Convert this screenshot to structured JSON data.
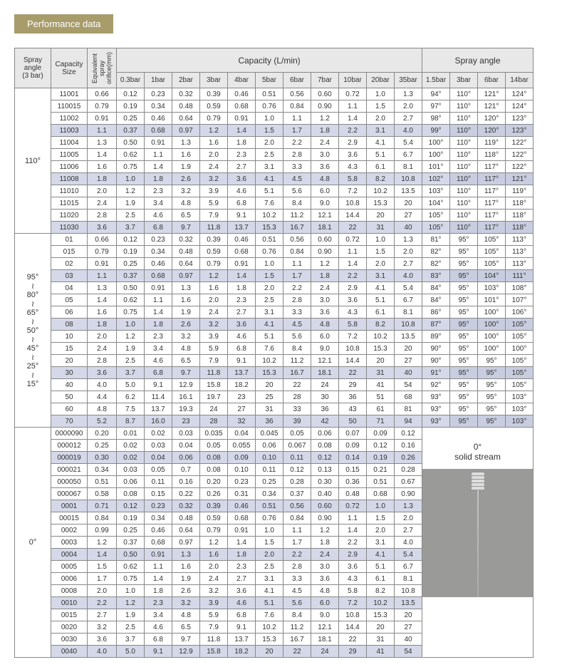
{
  "title": "Performance data",
  "title_bg": "#a89c6a",
  "title_color": "#ffffff",
  "header_bg": "#e8e8e8",
  "shade_bg": "#d4d8e8",
  "shade_angle_bg": "#c8cde0",
  "headers": {
    "spray_angle_label": "Spray\nangle\n(3 bar)",
    "capacity_size": "Capacity\nSize",
    "orifice": "Equivalent\nspray\norifice(mm)",
    "capacity_group": "Capacity (L/min)",
    "spray_angle_group": "Spray angle",
    "cap_cols": [
      "0.3bar",
      "1bar",
      "2bar",
      "3bar",
      "4bar",
      "5bar",
      "6bar",
      "7bar",
      "10bar",
      "20bar",
      "35bar"
    ],
    "angle_cols": [
      "1.5bar",
      "3bar",
      "6bar",
      "14bar"
    ]
  },
  "groups": [
    {
      "label": "110°",
      "rows": [
        {
          "s": "11001",
          "o": "0.66",
          "c": [
            "0.12",
            "0.23",
            "0.32",
            "0.39",
            "0.46",
            "0.51",
            "0.56",
            "0.60",
            "0.72",
            "1.0",
            "1.3"
          ],
          "a": [
            "94°",
            "110°",
            "121°",
            "124°"
          ]
        },
        {
          "s": "110015",
          "o": "0.79",
          "c": [
            "0.19",
            "0.34",
            "0.48",
            "0.59",
            "0.68",
            "0.76",
            "0.84",
            "0.90",
            "1.1",
            "1.5",
            "2.0"
          ],
          "a": [
            "97°",
            "110°",
            "121°",
            "124°"
          ]
        },
        {
          "s": "11002",
          "o": "0.91",
          "c": [
            "0.25",
            "0.46",
            "0.64",
            "0.79",
            "0.91",
            "1.0",
            "1.1",
            "1.2",
            "1.4",
            "2.0",
            "2.7"
          ],
          "a": [
            "98°",
            "110°",
            "120°",
            "123°"
          ]
        },
        {
          "s": "11003",
          "o": "1.1",
          "c": [
            "0.37",
            "0.68",
            "0.97",
            "1.2",
            "1.4",
            "1.5",
            "1.7",
            "1.8",
            "2.2",
            "3.1",
            "4.0"
          ],
          "a": [
            "99°",
            "110°",
            "120°",
            "123°"
          ],
          "shade": true
        },
        {
          "s": "11004",
          "o": "1.3",
          "c": [
            "0.50",
            "0.91",
            "1.3",
            "1.6",
            "1.8",
            "2.0",
            "2.2",
            "2.4",
            "2.9",
            "4.1",
            "5.4"
          ],
          "a": [
            "100°",
            "110°",
            "119°",
            "122°"
          ]
        },
        {
          "s": "11005",
          "o": "1.4",
          "c": [
            "0.62",
            "1.1",
            "1.6",
            "2.0",
            "2.3",
            "2.5",
            "2.8",
            "3.0",
            "3.6",
            "5.1",
            "6.7"
          ],
          "a": [
            "100°",
            "110°",
            "118°",
            "122°"
          ]
        },
        {
          "s": "11006",
          "o": "1.6",
          "c": [
            "0.75",
            "1.4",
            "1.9",
            "2.4",
            "2.7",
            "3.1",
            "3.3",
            "3.6",
            "4.3",
            "6.1",
            "8.1"
          ],
          "a": [
            "101°",
            "110°",
            "117°",
            "122°"
          ]
        },
        {
          "s": "11008",
          "o": "1.8",
          "c": [
            "1.0",
            "1.8",
            "2.6",
            "3.2",
            "3.6",
            "4.1",
            "4.5",
            "4.8",
            "5.8",
            "8.2",
            "10.8"
          ],
          "a": [
            "102°",
            "110°",
            "117°",
            "121°"
          ],
          "shade": true
        },
        {
          "s": "11010",
          "o": "2.0",
          "c": [
            "1.2",
            "2.3",
            "3.2",
            "3.9",
            "4.6",
            "5.1",
            "5.6",
            "6.0",
            "7.2",
            "10.2",
            "13.5"
          ],
          "a": [
            "103°",
            "110°",
            "117°",
            "119°"
          ]
        },
        {
          "s": "11015",
          "o": "2.4",
          "c": [
            "1.9",
            "3.4",
            "4.8",
            "5.9",
            "6.8",
            "7.6",
            "8.4",
            "9.0",
            "10.8",
            "15.3",
            "20"
          ],
          "a": [
            "104°",
            "110°",
            "117°",
            "118°"
          ]
        },
        {
          "s": "11020",
          "o": "2.8",
          "c": [
            "2.5",
            "4.6",
            "6.5",
            "7.9",
            "9.1",
            "10.2",
            "11.2",
            "12.1",
            "14.4",
            "20",
            "27"
          ],
          "a": [
            "105°",
            "110°",
            "117°",
            "118°"
          ]
        },
        {
          "s": "11030",
          "o": "3.6",
          "c": [
            "3.7",
            "6.8",
            "9.7",
            "11.8",
            "13.7",
            "15.3",
            "16.7",
            "18.1",
            "22",
            "31",
            "40"
          ],
          "a": [
            "105°",
            "110°",
            "117°",
            "118°"
          ],
          "shade": true
        }
      ]
    },
    {
      "label": "95°\n≀\n80°\n≀\n65°\n≀\n50°\n≀\n45°\n≀\n25°\n≀\n15°",
      "rows": [
        {
          "s": "01",
          "o": "0.66",
          "c": [
            "0.12",
            "0.23",
            "0.32",
            "0.39",
            "0.46",
            "0.51",
            "0.56",
            "0.60",
            "0.72",
            "1.0",
            "1.3"
          ],
          "a": [
            "81°",
            "95°",
            "105°",
            "113°"
          ]
        },
        {
          "s": "015",
          "o": "0.79",
          "c": [
            "0.19",
            "0.34",
            "0.48",
            "0.59",
            "0.68",
            "0.76",
            "0.84",
            "0.90",
            "1.1",
            "1.5",
            "2.0"
          ],
          "a": [
            "82°",
            "95°",
            "105°",
            "113°"
          ]
        },
        {
          "s": "02",
          "o": "0.91",
          "c": [
            "0.25",
            "0.46",
            "0.64",
            "0.79",
            "0.91",
            "1.0",
            "1.1",
            "1.2",
            "1.4",
            "2.0",
            "2.7"
          ],
          "a": [
            "82°",
            "95°",
            "105°",
            "113°"
          ]
        },
        {
          "s": "03",
          "o": "1.1",
          "c": [
            "0.37",
            "0.68",
            "0.97",
            "1.2",
            "1.4",
            "1.5",
            "1.7",
            "1.8",
            "2.2",
            "3.1",
            "4.0"
          ],
          "a": [
            "83°",
            "95°",
            "104°",
            "111°"
          ],
          "shade": true
        },
        {
          "s": "04",
          "o": "1.3",
          "c": [
            "0.50",
            "0.91",
            "1.3",
            "1.6",
            "1.8",
            "2.0",
            "2.2",
            "2.4",
            "2.9",
            "4.1",
            "5.4"
          ],
          "a": [
            "84°",
            "95°",
            "103°",
            "108°"
          ]
        },
        {
          "s": "05",
          "o": "1.4",
          "c": [
            "0.62",
            "1.1",
            "1.6",
            "2.0",
            "2.3",
            "2.5",
            "2.8",
            "3.0",
            "3.6",
            "5.1",
            "6.7"
          ],
          "a": [
            "84°",
            "95°",
            "101°",
            "107°"
          ]
        },
        {
          "s": "06",
          "o": "1.6",
          "c": [
            "0.75",
            "1.4",
            "1.9",
            "2.4",
            "2.7",
            "3.1",
            "3.3",
            "3.6",
            "4.3",
            "6.1",
            "8.1"
          ],
          "a": [
            "86°",
            "95°",
            "100°",
            "106°"
          ]
        },
        {
          "s": "08",
          "o": "1.8",
          "c": [
            "1.0",
            "1.8",
            "2.6",
            "3.2",
            "3.6",
            "4.1",
            "4.5",
            "4.8",
            "5.8",
            "8.2",
            "10.8"
          ],
          "a": [
            "87°",
            "95°",
            "100°",
            "105°"
          ],
          "shade": true
        },
        {
          "s": "10",
          "o": "2.0",
          "c": [
            "1.2",
            "2.3",
            "3.2",
            "3.9",
            "4.6",
            "5.1",
            "5.6",
            "6.0",
            "7.2",
            "10.2",
            "13.5"
          ],
          "a": [
            "89°",
            "95°",
            "100°",
            "105°"
          ]
        },
        {
          "s": "15",
          "o": "2.4",
          "c": [
            "1.9",
            "3.4",
            "4.8",
            "5.9",
            "6.8",
            "7.6",
            "8.4",
            "9.0",
            "10.8",
            "15.3",
            "20"
          ],
          "a": [
            "90°",
            "95°",
            "100°",
            "100°"
          ]
        },
        {
          "s": "20",
          "o": "2.8",
          "c": [
            "2.5",
            "4.6",
            "6.5",
            "7.9",
            "9.1",
            "10.2",
            "11.2",
            "12.1",
            "14.4",
            "20",
            "27"
          ],
          "a": [
            "90°",
            "95°",
            "95°",
            "105°"
          ]
        },
        {
          "s": "30",
          "o": "3.6",
          "c": [
            "3.7",
            "6.8",
            "9.7",
            "11.8",
            "13.7",
            "15.3",
            "16.7",
            "18.1",
            "22",
            "31",
            "40"
          ],
          "a": [
            "91°",
            "95°",
            "95°",
            "105°"
          ],
          "shade": true
        },
        {
          "s": "40",
          "o": "4.0",
          "c": [
            "5.0",
            "9.1",
            "12.9",
            "15.8",
            "18.2",
            "20",
            "22",
            "24",
            "29",
            "41",
            "54"
          ],
          "a": [
            "92°",
            "95°",
            "95°",
            "105°"
          ]
        },
        {
          "s": "50",
          "o": "4.4",
          "c": [
            "6.2",
            "11.4",
            "16.1",
            "19.7",
            "23",
            "25",
            "28",
            "30",
            "36",
            "51",
            "68"
          ],
          "a": [
            "93°",
            "95°",
            "95°",
            "103°"
          ]
        },
        {
          "s": "60",
          "o": "4.8",
          "c": [
            "7.5",
            "13.7",
            "19.3",
            "24",
            "27",
            "31",
            "33",
            "36",
            "43",
            "61",
            "81"
          ],
          "a": [
            "93°",
            "95°",
            "95°",
            "103°"
          ]
        },
        {
          "s": "70",
          "o": "5.2",
          "c": [
            "8.7",
            "16.0",
            "23",
            "28",
            "32",
            "36",
            "39",
            "42",
            "50",
            "71",
            "94"
          ],
          "a": [
            "93°",
            "95°",
            "95°",
            "103°"
          ],
          "shade": true
        }
      ]
    },
    {
      "label": "0°",
      "solid_stream": true,
      "solid_stream_label": "0°\nsolid stream",
      "rows": [
        {
          "s": "0000090",
          "o": "0.20",
          "c": [
            "0.01",
            "0.02",
            "0.03",
            "0.035",
            "0.04",
            "0.045",
            "0.05",
            "0.06",
            "0.07",
            "0.09",
            "0.12"
          ],
          "a": []
        },
        {
          "s": "000012",
          "o": "0.25",
          "c": [
            "0.02",
            "0.03",
            "0.04",
            "0.05",
            "0.055",
            "0.06",
            "0.067",
            "0.08",
            "0.09",
            "0.12",
            "0.16"
          ],
          "a": []
        },
        {
          "s": "000019",
          "o": "0.30",
          "c": [
            "0.02",
            "0.04",
            "0.06",
            "0.08",
            "0.09",
            "0.10",
            "0.11",
            "0.12",
            "0.14",
            "0.19",
            "0.26"
          ],
          "a": [],
          "shade": true
        },
        {
          "s": "000021",
          "o": "0.34",
          "c": [
            "0.03",
            "0.05",
            "0.7",
            "0.08",
            "0.10",
            "0.11",
            "0.12",
            "0.13",
            "0.15",
            "0.21",
            "0.28"
          ],
          "a": []
        },
        {
          "s": "000050",
          "o": "0.51",
          "c": [
            "0.06",
            "0.11",
            "0.16",
            "0.20",
            "0.23",
            "0.25",
            "0.28",
            "0.30",
            "0.36",
            "0.51",
            "0.67"
          ],
          "a": []
        },
        {
          "s": "000067",
          "o": "0.58",
          "c": [
            "0.08",
            "0.15",
            "0.22",
            "0.26",
            "0.31",
            "0.34",
            "0.37",
            "0.40",
            "0.48",
            "0.68",
            "0.90"
          ],
          "a": []
        },
        {
          "s": "0001",
          "o": "0.71",
          "c": [
            "0.12",
            "0.23",
            "0.32",
            "0.39",
            "0.46",
            "0.51",
            "0.56",
            "0.60",
            "0.72",
            "1.0",
            "1.3"
          ],
          "a": [],
          "shade": true
        },
        {
          "s": "00015",
          "o": "0.84",
          "c": [
            "0.19",
            "0.34",
            "0.48",
            "0.59",
            "0.68",
            "0.76",
            "0.84",
            "0.90",
            "1.1",
            "1.5",
            "2.0"
          ],
          "a": []
        },
        {
          "s": "0002",
          "o": "0.99",
          "c": [
            "0.25",
            "0.46",
            "0.64",
            "0.79",
            "0.91",
            "1.0",
            "1.1",
            "1.2",
            "1.4",
            "2.0",
            "2.7"
          ],
          "a": []
        },
        {
          "s": "0003",
          "o": "1.2",
          "c": [
            "0.37",
            "0.68",
            "0.97",
            "1.2",
            "1.4",
            "1.5",
            "1.7",
            "1.8",
            "2.2",
            "3.1",
            "4.0"
          ],
          "a": []
        },
        {
          "s": "0004",
          "o": "1.4",
          "c": [
            "0.50",
            "0.91",
            "1.3",
            "1.6",
            "1.8",
            "2.0",
            "2.2",
            "2.4",
            "2.9",
            "4.1",
            "5.4"
          ],
          "a": [],
          "shade": true
        },
        {
          "s": "0005",
          "o": "1.5",
          "c": [
            "0.62",
            "1.1",
            "1.6",
            "2.0",
            "2.3",
            "2.5",
            "2.8",
            "3.0",
            "3.6",
            "5.1",
            "6.7"
          ],
          "a": []
        },
        {
          "s": "0006",
          "o": "1.7",
          "c": [
            "0.75",
            "1.4",
            "1.9",
            "2.4",
            "2.7",
            "3.1",
            "3.3",
            "3.6",
            "4.3",
            "6.1",
            "8.1"
          ],
          "a": []
        },
        {
          "s": "0008",
          "o": "2.0",
          "c": [
            "1.0",
            "1.8",
            "2.6",
            "3.2",
            "3.6",
            "4.1",
            "4.5",
            "4.8",
            "5.8",
            "8.2",
            "10.8"
          ],
          "a": []
        },
        {
          "s": "0010",
          "o": "2.2",
          "c": [
            "1.2",
            "2.3",
            "3.2",
            "3.9",
            "4.6",
            "5.1",
            "5.6",
            "6.0",
            "7.2",
            "10.2",
            "13.5"
          ],
          "a": [],
          "shade": true
        },
        {
          "s": "0015",
          "o": "2.7",
          "c": [
            "1.9",
            "3.4",
            "4.8",
            "5.9",
            "6.8",
            "7.6",
            "8.4",
            "9.0",
            "10.8",
            "15.3",
            "20"
          ],
          "a": []
        },
        {
          "s": "0020",
          "o": "3.2",
          "c": [
            "2.5",
            "4.6",
            "6.5",
            "7.9",
            "9.1",
            "10.2",
            "11.2",
            "12.1",
            "14.4",
            "20",
            "27"
          ],
          "a": []
        },
        {
          "s": "0030",
          "o": "3.6",
          "c": [
            "3.7",
            "6.8",
            "9.7",
            "11.8",
            "13.7",
            "15.3",
            "16.7",
            "18.1",
            "22",
            "31",
            "40"
          ],
          "a": []
        },
        {
          "s": "0040",
          "o": "4.0",
          "c": [
            "5.0",
            "9.1",
            "12.9",
            "15.8",
            "18.2",
            "20",
            "22",
            "24",
            "29",
            "41",
            "54"
          ],
          "a": [],
          "shade": true
        }
      ]
    }
  ]
}
